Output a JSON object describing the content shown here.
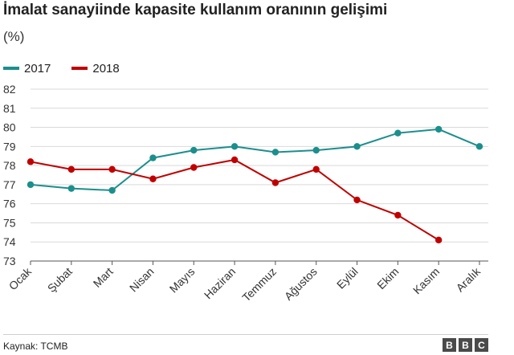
{
  "page": {
    "title": "İmalat sanayiinde kapasite kullanım oranının gelişimi",
    "unit": "(%)",
    "source": "Kaynak: TCMB",
    "logo": [
      "B",
      "B",
      "C"
    ]
  },
  "chart_data": {
    "type": "line",
    "categories": [
      "Ocak",
      "Şubat",
      "Mart",
      "Nisan",
      "Mayıs",
      "Haziran",
      "Temmuz",
      "Ağustos",
      "Eylül",
      "Ekim",
      "Kasım",
      "Aralık"
    ],
    "series": [
      {
        "name": "2017",
        "color": "#1b8f8c",
        "values": [
          77.0,
          76.8,
          76.7,
          78.4,
          78.8,
          79.0,
          78.7,
          78.8,
          79.0,
          79.7,
          79.9,
          79.0
        ]
      },
      {
        "name": "2018",
        "color": "#c00000",
        "values": [
          78.2,
          77.8,
          77.8,
          77.3,
          77.9,
          78.3,
          77.1,
          77.8,
          76.2,
          75.4,
          74.1,
          null
        ]
      }
    ],
    "ylim": [
      73,
      82
    ],
    "yticks": [
      73,
      74,
      75,
      76,
      77,
      78,
      79,
      80,
      81,
      82
    ],
    "grid": true,
    "legend": "top-left"
  }
}
